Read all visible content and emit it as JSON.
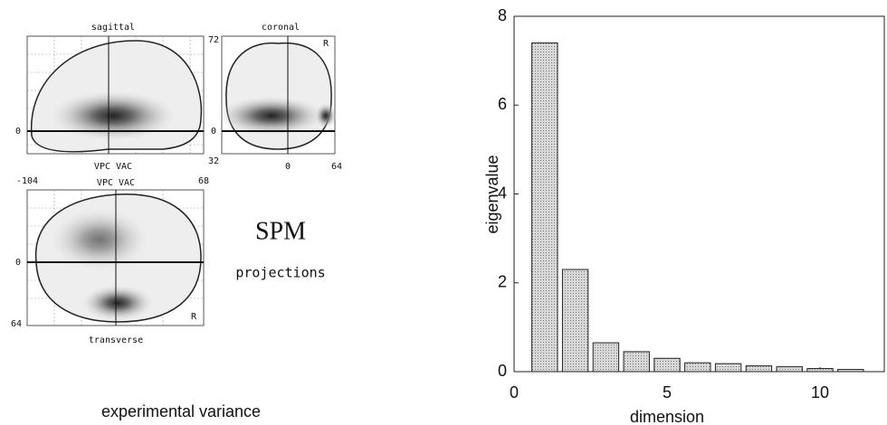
{
  "figure": {
    "sagittal": {
      "title": "sagittal",
      "left": "-104",
      "right": "68",
      "zero": "0",
      "bottom": "VPC VAC"
    },
    "coronal": {
      "title": "coronal",
      "top": "72",
      "zero": "0",
      "bottom_left": "32",
      "x0": "0",
      "x64": "64",
      "side": "R"
    },
    "transverse": {
      "title": "transverse",
      "top": "VPC VAC",
      "zero": "0",
      "bottom_left": "64",
      "side": "R"
    },
    "spm": "SPM",
    "projections": "projections",
    "caption": "experimental variance"
  },
  "chart_data": {
    "type": "bar",
    "xlabel": "dimension",
    "ylabel": "eigenvalue",
    "x": [
      1,
      2,
      3,
      4,
      5,
      6,
      7,
      8,
      9,
      10,
      11
    ],
    "values": [
      7.4,
      2.3,
      0.65,
      0.45,
      0.3,
      0.2,
      0.18,
      0.13,
      0.11,
      0.07,
      0.05
    ],
    "color": "#c8c8c8",
    "xlim": [
      0,
      12.1
    ],
    "xticks": [
      0,
      5,
      10
    ],
    "ylim": [
      0,
      8
    ],
    "yticks": [
      0,
      2,
      4,
      6,
      8
    ]
  }
}
